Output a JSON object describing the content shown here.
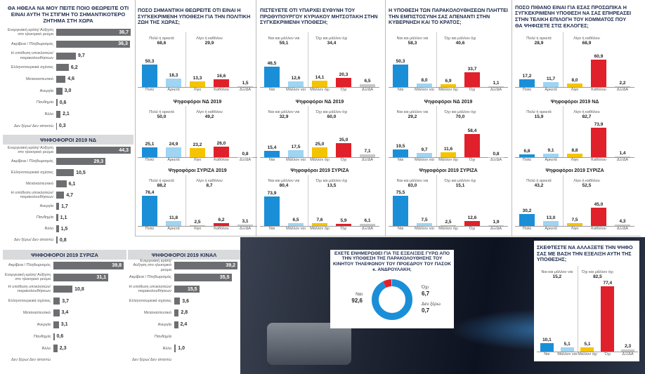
{
  "chart_data": [
    {
      "type": "hbar",
      "title": "ΘΑ ΗΘΕΛΑ ΝΑ ΜΟΥ ΠΕΙΤΕ ΠΟΙΟ ΘΕΩΡΕΙΤΕ ΟΤΙ ΕΙΝΑΙ ΑΥΤΗ ΤΗ ΣΤΙΓΜΗ ΤΟ ΣΗΜΑΝΤΙΚΟΤΕΡΟ ΖΗΤΗΜΑ ΣΤΗ ΧΩΡΑ",
      "color": "#6d6e71",
      "categories": [
        "Ενεργειακή κρίση/ Αύξηση στο ηλεκτρικό ρεύμα",
        "Ακρίβεια / Πληθωρισμός",
        "Η υπόθεση υποκλοπών/ παρακολουθήσεων",
        "Ελληνοτουρκικά σχέσεις",
        "Μεταναστευτικό",
        "Ανεργία",
        "Πανδημία",
        "Άλλο",
        "Δεν ξέρω/ Δεν απαντώ"
      ],
      "values": [
        36.7,
        36.3,
        9.7,
        6.2,
        4.6,
        3.0,
        0.6,
        2.1,
        0.3
      ],
      "value_labels": [
        "36,7",
        "36,3",
        "9,7",
        "6,2",
        "4,6",
        "3,0",
        "0,6",
        "2,1",
        "0,3"
      ]
    },
    {
      "type": "hbar",
      "title": "ΨΗΦΟΦΟΡΟΙ 2019 ΝΔ",
      "color": "#6d6e71",
      "categories": [
        "Ενεργειακή κρίση/ Αύξηση στο ηλεκτρικό ρεύμα",
        "Ακρίβεια / Πληθωρισμός",
        "Ελληνοτουρκικά σχέσεις",
        "Μεταναστευτικό",
        "Η υπόθεση υποκλοπών/ παρακολουθήσεων",
        "Ανεργία",
        "Πανδημία",
        "Άλλο",
        "Δεν ξέρω/ Δεν απαντώ"
      ],
      "values": [
        44.3,
        29.3,
        10.5,
        6.1,
        4.7,
        1.7,
        1.1,
        1.5,
        0.8
      ],
      "value_labels": [
        "44,3",
        "29,3",
        "10,5",
        "6,1",
        "4,7",
        "1,7",
        "1,1",
        "1,5",
        "0,8"
      ]
    },
    {
      "type": "hbar",
      "title": "ΨΗΦΟΦΟΡΟΙ 2019 ΣΥΡΙΖΑ",
      "color": "#6d6e71",
      "categories": [
        "Ακρίβεια / Πληθωρισμός",
        "Ενεργειακή κρίση/ Αύξηση στο ηλεκτρικό ρεύμα",
        "Η υπόθεση υποκλοπών/ παρακολουθήσεων",
        "Ελληνοτουρκικά σχέσεις",
        "Μεταναστευτικό",
        "Ανεργία",
        "Πανδημία",
        "Άλλο",
        "Δεν ξέρω/ Δεν απαντώ"
      ],
      "values": [
        39.8,
        31.1,
        10.8,
        3.7,
        3.4,
        3.1,
        0.6,
        2.3,
        null
      ],
      "value_labels": [
        "39,8",
        "31,1",
        "10,8",
        "3,7",
        "3,4",
        "3,1",
        "0,6",
        "2,3",
        null
      ]
    },
    {
      "type": "hbar",
      "title": "ΨΗΦΟΦΟΡΟΙ 2019 ΚΙΝΑΛ",
      "color": "#6d6e71",
      "categories": [
        "Ενεργειακή κρίση/ Αύξηση στο ηλεκτρικό ρεύμα",
        "Ακρίβεια / Πληθωρισμός",
        "Η υπόθεση υποκλοπών/ παρακολουθήσεων",
        "Ελληνοτουρκικά σχέσεις",
        "Μεταναστευτικό",
        "Ανεργία",
        "Πανδημία",
        "Άλλο",
        "Δεν ξέρω/ Δεν απαντώ"
      ],
      "values": [
        39.2,
        35.5,
        15.5,
        3.6,
        2.8,
        2.4,
        null,
        1.0,
        null
      ],
      "value_labels": [
        "39,2",
        "35,5",
        "15,5",
        "3,6",
        "2,8",
        "2,4",
        null,
        "1,0",
        null
      ]
    },
    {
      "type": "bar",
      "title": "ΠΟΣΟ ΣΗΜΑΝΤΙΚΗ ΘΕΩΡΕΙΤΕ ΟΤΙ ΕΙΝΑΙ Η ΣΥΓΚΕΚΡΙΜΕΝΗ ΥΠΟΘΕΣΗ ΓΙΑ ΤΗΝ ΠΟΛΙΤΙΚΗ ΖΩΗ ΤΗΣ ΧΩΡΑΣ;",
      "categories": [
        "Πολύ",
        "Αρκετά",
        "Λίγο",
        "Καθόλου",
        "ΔΞ/ΔΑ"
      ],
      "colors": [
        "#1a8fd8",
        "#9fd4f2",
        "#f5c400",
        "#e0202a",
        "#c8c8c8"
      ],
      "values": [
        50.3,
        18.3,
        13.3,
        16.6,
        1.5
      ],
      "value_labels": [
        "50,3",
        "18,3",
        "13,3",
        "16,6",
        "1,5"
      ],
      "groups": [
        {
          "label": "Πολύ ή αρκετά",
          "value": 68.6,
          "value_label": "68,6"
        },
        {
          "label": "Λίγο ή καθόλου",
          "value": 29.9,
          "value_label": "29,9"
        }
      ]
    },
    {
      "type": "bar",
      "subtitle": "Ψηφοφόροι ΝΔ 2019",
      "categories": [
        "Πολύ",
        "Αρκετά",
        "Λίγο",
        "Καθόλου",
        "ΔΞ/ΔΑ"
      ],
      "colors": [
        "#1a8fd8",
        "#9fd4f2",
        "#f5c400",
        "#e0202a",
        "#c8c8c8"
      ],
      "values": [
        25.1,
        24.9,
        23.2,
        26.0,
        0.8
      ],
      "value_labels": [
        "25,1",
        "24,9",
        "23,2",
        "26,0",
        "0,8"
      ],
      "groups": [
        {
          "label": "Πολύ ή αρκετά",
          "value": 50.0,
          "value_label": "50,0"
        },
        {
          "label": "Λίγο ή καθόλου",
          "value": 49.2,
          "value_label": "49,2"
        }
      ]
    },
    {
      "type": "bar",
      "subtitle": "Ψηφοφόροι ΣΥΡΙΖΑ 2019",
      "categories": [
        "Πολύ",
        "Αρκετά",
        "Λίγο",
        "Καθόλου",
        "ΔΞ/ΔΑ"
      ],
      "colors": [
        "#1a8fd8",
        "#9fd4f2",
        "#f5c400",
        "#e0202a",
        "#c8c8c8"
      ],
      "values": [
        76.4,
        11.8,
        2.5,
        6.2,
        3.1
      ],
      "value_labels": [
        "76,4",
        "11,8",
        "2,5",
        "6,2",
        "3,1"
      ],
      "groups": [
        {
          "label": "Πολύ ή αρκετά",
          "value": 88.2,
          "value_label": "88,2"
        },
        {
          "label": "Λίγο ή καθόλου",
          "value": 8.7,
          "value_label": "8,7"
        }
      ]
    },
    {
      "type": "bar",
      "title": "ΠΙΣΤΕΥΕΤΕ ΟΤΙ ΥΠΑΡΧΕΙ ΕΥΘΥΝΗ ΤΟΥ ΠΡΩΘΥΠΟΥΡΓΟΥ ΚΥΡΙΑΚΟΥ ΜΗΤΣΟΤΑΚΗ ΣΤΗΝ ΣΥΓΚΕΚΡΙΜΕΝΗ ΥΠΟΘΕΣΗ;",
      "categories": [
        "Ναι",
        "Μάλλον ναι",
        "Μάλλον όχι",
        "Όχι",
        "ΔΞ/ΔΑ"
      ],
      "colors": [
        "#1a8fd8",
        "#9fd4f2",
        "#f5c400",
        "#e0202a",
        "#c8c8c8"
      ],
      "values": [
        46.5,
        12.6,
        14.1,
        20.3,
        6.5
      ],
      "value_labels": [
        "46,5",
        "12,6",
        "14,1",
        "20,3",
        "6,5"
      ],
      "groups": [
        {
          "label": "Ναι και μάλλον ναι",
          "value": 59.1,
          "value_label": "59,1"
        },
        {
          "label": "Όχι και μάλλον όχι",
          "value": 34.4,
          "value_label": "34,4"
        }
      ]
    },
    {
      "type": "bar",
      "subtitle": "Ψηφοφόροι ΝΔ 2019",
      "categories": [
        "Ναι",
        "Μάλλον ναι",
        "Μάλλον όχι",
        "Όχι",
        "ΔΞ/ΔΑ"
      ],
      "colors": [
        "#1a8fd8",
        "#9fd4f2",
        "#f5c400",
        "#e0202a",
        "#c8c8c8"
      ],
      "values": [
        15.4,
        17.5,
        25.0,
        35.0,
        7.1
      ],
      "value_labels": [
        "15,4",
        "17,5",
        "25,0",
        "35,0",
        "7,1"
      ],
      "groups": [
        {
          "label": "Ναι και μάλλον ναι",
          "value": 32.9,
          "value_label": "32,9"
        },
        {
          "label": "Όχι και μάλλον όχι",
          "value": 60.0,
          "value_label": "60,0"
        }
      ]
    },
    {
      "type": "bar",
      "subtitle": "Ψηφοφόροι 2019 ΣΥΡΙΖΑ",
      "categories": [
        "Ναι",
        "Μάλλον ναι",
        "Μάλλον όχι",
        "Όχι",
        "ΔΞ/ΔΑ"
      ],
      "colors": [
        "#1a8fd8",
        "#9fd4f2",
        "#f5c400",
        "#e0202a",
        "#c8c8c8"
      ],
      "values": [
        73.9,
        6.5,
        7.6,
        5.9,
        6.1
      ],
      "value_labels": [
        "73,9",
        "6,5",
        "7,6",
        "5,9",
        "6,1"
      ],
      "groups": [
        {
          "label": "Ναι και μάλλον ναι",
          "value": 80.4,
          "value_label": "80,4"
        },
        {
          "label": "Όχι και μάλλον όχι",
          "value": 13.5,
          "value_label": "13,5"
        }
      ]
    },
    {
      "type": "bar",
      "title": "Η ΥΠΟΘΕΣΗ ΤΩΝ ΠΑΡΑΚΟΛΟΥΘΗΣΕΩΝ ΠΛΗΤΤΕΙ ΤΗΝ ΕΜΠΙΣΤΟΣΥΝΗ ΣΑΣ ΑΠΕΝΑΝΤΙ ΣΤΗΝ ΚΥΒΕΡΝΗΣΗ ΚΑΙ ΤΟ ΚΡΑΤΟΣ;",
      "categories": [
        "Ναι",
        "Μάλλον ναι",
        "Μάλλον όχι",
        "Όχι",
        "ΔΞ/ΔΑ"
      ],
      "colors": [
        "#1a8fd8",
        "#9fd4f2",
        "#f5c400",
        "#e0202a",
        "#c8c8c8"
      ],
      "values": [
        50.3,
        8.0,
        6.9,
        33.7,
        1.1
      ],
      "value_labels": [
        "50,3",
        "8,0",
        "6,9",
        "33,7",
        "1,1"
      ],
      "groups": [
        {
          "label": "Ναι και μάλλον ναι",
          "value": 58.3,
          "value_label": "58,3"
        },
        {
          "label": "Όχι και μάλλον όχι",
          "value": 40.6,
          "value_label": "40,6"
        }
      ]
    },
    {
      "type": "bar",
      "subtitle": "Ψηφοφόροι ΝΔ 2019",
      "categories": [
        "Ναι",
        "Μάλλον ναι",
        "Μάλλον όχι",
        "Όχι",
        "ΔΞ/ΔΑ"
      ],
      "colors": [
        "#1a8fd8",
        "#9fd4f2",
        "#f5c400",
        "#e0202a",
        "#c8c8c8"
      ],
      "values": [
        19.5,
        9.7,
        11.6,
        58.4,
        0.8
      ],
      "value_labels": [
        "19,5",
        "9,7",
        "11,6",
        "58,4",
        "0,8"
      ],
      "groups": [
        {
          "label": "Ναι και μάλλον ναι",
          "value": 29.2,
          "value_label": "29,2"
        },
        {
          "label": "Όχι και μάλλον όχι",
          "value": 70.0,
          "value_label": "70,0"
        }
      ]
    },
    {
      "type": "bar",
      "subtitle": "Ψηφοφόροι 2019 ΣΥΡΙΖΑ",
      "categories": [
        "Ναι",
        "Μάλλον ναι",
        "Μάλλον όχι",
        "Όχι",
        "ΔΞ/ΔΑ"
      ],
      "colors": [
        "#1a8fd8",
        "#9fd4f2",
        "#f5c400",
        "#e0202a",
        "#c8c8c8"
      ],
      "values": [
        75.5,
        7.5,
        2.5,
        12.6,
        1.9
      ],
      "value_labels": [
        "75,5",
        "7,5",
        "2,5",
        "12,6",
        "1,9"
      ],
      "groups": [
        {
          "label": "Ναι και μάλλον ναι",
          "value": 83.0,
          "value_label": "83,0"
        },
        {
          "label": "Όχι και μάλλον όχι",
          "value": 15.1,
          "value_label": "15,1"
        }
      ]
    },
    {
      "type": "bar",
      "title": "ΠΟΣΟ ΠΙΘΑΝΟ ΕΙΝΑΙ ΓΙΑ ΕΣΑΣ ΠΡΟΣΩΠΙΚΑ Η ΣΥΓΚΕΚΡΙΜΕΝΗ ΥΠΟΘΕΣΗ ΝΑ ΣΑΣ ΕΠΗΡΕΑΣΕΙ ΣΤΗΝ ΤΕΛΙΚΗ ΕΠΙΛΟΓΗ ΤΟΥ ΚΟΜΜΑΤΟΣ ΠΟΥ ΘΑ ΨΗΦΙΣΕΤΕ ΣΤΙΣ ΕΚΛΟΓΕΣ;",
      "categories": [
        "Πολύ",
        "Αρκετά",
        "Λίγο",
        "Καθόλου",
        "ΔΞ/ΔΑ"
      ],
      "colors": [
        "#1a8fd8",
        "#9fd4f2",
        "#f5c400",
        "#e0202a",
        "#c8c8c8"
      ],
      "values": [
        17.2,
        11.7,
        8.0,
        60.9,
        2.2
      ],
      "value_labels": [
        "17,2",
        "11,7",
        "8,0",
        "60,9",
        "2,2"
      ],
      "groups": [
        {
          "label": "Πολύ ή αρκετά",
          "value": 28.9,
          "value_label": "28,9"
        },
        {
          "label": "Λίγο ή καθόλου",
          "value": 68.9,
          "value_label": "68,9"
        }
      ]
    },
    {
      "type": "bar",
      "subtitle": "Ψηφοφόροι 2019 ΝΔ",
      "categories": [
        "Πολύ",
        "Αρκετά",
        "Λίγο",
        "Καθόλου",
        "ΔΞ/ΔΑ"
      ],
      "colors": [
        "#1a8fd8",
        "#9fd4f2",
        "#f5c400",
        "#e0202a",
        "#c8c8c8"
      ],
      "values": [
        6.8,
        9.1,
        8.8,
        73.9,
        1.4
      ],
      "value_labels": [
        "6,8",
        "9,1",
        "8,8",
        "73,9",
        "1,4"
      ],
      "groups": [
        {
          "label": "Πολύ ή αρκετά",
          "value": 15.9,
          "value_label": "15,9"
        },
        {
          "label": "Λίγο ή καθόλου",
          "value": 82.7,
          "value_label": "82,7"
        }
      ]
    },
    {
      "type": "bar",
      "subtitle": "Ψηφοφόροι 2019 ΣΥΡΙΖΑ",
      "categories": [
        "Πολύ",
        "Αρκετά",
        "Λίγο",
        "Καθόλου",
        "ΔΞ/ΔΑ"
      ],
      "colors": [
        "#1a8fd8",
        "#9fd4f2",
        "#f5c400",
        "#e0202a",
        "#c8c8c8"
      ],
      "values": [
        30.2,
        13.0,
        7.5,
        45.0,
        4.3
      ],
      "value_labels": [
        "30,2",
        "13,0",
        "7,5",
        "45,0",
        "4,3"
      ],
      "groups": [
        {
          "label": "Πολύ ή αρκετά",
          "value": 43.2,
          "value_label": "43,2"
        },
        {
          "label": "Λίγο ή καθόλου",
          "value": 52.5,
          "value_label": "52,5"
        }
      ]
    },
    {
      "type": "bar",
      "title": "ΣΚΕΦΤΕΣΤΕ ΝΑ ΑΛΛΑΞΕΤΕ ΤΗΝ ΨΗΦΟ ΣΑΣ ΜΕ ΒΑΣΗ ΤΗΝ ΕΞΕΛΙΞΗ ΑΥΤΗ ΤΗΣ ΥΠΟΘΕΣΗΣ;",
      "categories": [
        "Ναι",
        "Μάλλον ναι",
        "Μάλλον όχι",
        "Όχι",
        "ΔΞ/ΔΑ"
      ],
      "colors": [
        "#1a8fd8",
        "#9fd4f2",
        "#f5c400",
        "#e0202a",
        "#c8c8c8"
      ],
      "values": [
        10.1,
        5.1,
        5.1,
        77.4,
        2.3
      ],
      "value_labels": [
        "10,1",
        "5,1",
        "5,1",
        "77,4",
        "2,3"
      ],
      "groups": [
        {
          "label": "Ναι και μάλλον ναι",
          "value": 15.2,
          "value_label": "15,2"
        },
        {
          "label": "Όχι και μάλλον όχι",
          "value": 82.5,
          "value_label": "82,5"
        }
      ]
    },
    {
      "type": "donut",
      "title": "ΕΧΕΤΕ ΕΝΗΜΕΡΩΘΕΙ ΓΙΑ ΤΙΣ ΕΞΕΛΙΞΕΙΣ ΓΥΡΩ ΑΠΟ ΤΗΝ ΥΠΟΘΕΣΗ ΤΗΣ ΠΑΡΑΚΟΛΟΥΘΗΣΗΣ ΤΟΥ ΚΙΝΗΤΟΥ ΤΗΛΕΦΩΝΟΥ ΤΟΥ ΠΡΟΕΔΡΟΥ ΤΟΥ ΠΑΣΟΚ κ. ΑΝΔΡΟΥΛΑΚΗ;",
      "categories": [
        "Ναι",
        "Όχι",
        "Δεν ξέρω"
      ],
      "colors": [
        "#1a8fd8",
        "#e0202a",
        "#9fd4f2"
      ],
      "values": [
        92.6,
        6.7,
        0.7
      ],
      "value_labels": [
        "92,6",
        "6,7",
        "0,7"
      ]
    }
  ]
}
